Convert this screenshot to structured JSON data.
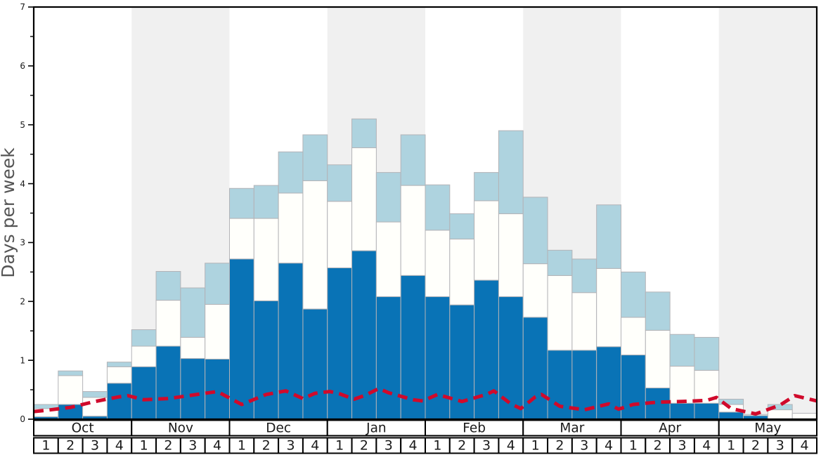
{
  "chart_data": {
    "type": "bar",
    "title": "",
    "xlabel": "",
    "ylabel": "Days per week",
    "ylim": [
      0,
      7
    ],
    "y_major_ticks": [
      "0",
      "1",
      "2",
      "3",
      "4",
      "5",
      "6",
      "7"
    ],
    "y_minor_step": 0.5,
    "grid": false,
    "legend": "none",
    "months": [
      {
        "label": "Oct",
        "shaded": false,
        "weeks": [
          "1",
          "2",
          "3",
          "4"
        ]
      },
      {
        "label": "Nov",
        "shaded": true,
        "weeks": [
          "1",
          "2",
          "3",
          "4"
        ]
      },
      {
        "label": "Dec",
        "shaded": false,
        "weeks": [
          "1",
          "2",
          "3",
          "4"
        ]
      },
      {
        "label": "Jan",
        "shaded": true,
        "weeks": [
          "1",
          "2",
          "3",
          "4"
        ]
      },
      {
        "label": "Feb",
        "shaded": false,
        "weeks": [
          "1",
          "2",
          "3",
          "4"
        ]
      },
      {
        "label": "Mar",
        "shaded": true,
        "weeks": [
          "1",
          "2",
          "3",
          "4"
        ]
      },
      {
        "label": "Apr",
        "shaded": false,
        "weeks": [
          "1",
          "2",
          "3",
          "4"
        ]
      },
      {
        "label": "May",
        "shaded": true,
        "weeks": [
          "1",
          "2",
          "3",
          "4"
        ]
      }
    ],
    "series": [
      {
        "name": "dark_blue_bottom_segment_top",
        "values": [
          0.04,
          0.25,
          0.05,
          0.61,
          0.89,
          1.24,
          1.03,
          1.02,
          2.72,
          2.01,
          2.65,
          1.87,
          2.57,
          2.86,
          2.08,
          2.44,
          2.08,
          1.94,
          2.36,
          2.08,
          1.73,
          1.17,
          1.17,
          1.23,
          1.09,
          0.53,
          0.27,
          0.27,
          0.12,
          0.06,
          0.0,
          0.0
        ]
      },
      {
        "name": "white_middle_segment_top",
        "values": [
          0.18,
          0.74,
          0.37,
          0.89,
          1.24,
          2.02,
          1.39,
          1.95,
          3.41,
          3.41,
          3.84,
          4.05,
          3.7,
          4.61,
          3.35,
          3.97,
          3.21,
          3.06,
          3.71,
          3.49,
          2.64,
          2.44,
          2.15,
          2.56,
          1.73,
          1.51,
          0.9,
          0.83,
          0.25,
          0.08,
          0.16,
          0.1
        ]
      },
      {
        "name": "light_blue_top_segment_top",
        "values": [
          0.25,
          0.82,
          0.47,
          0.97,
          1.52,
          2.51,
          2.23,
          2.65,
          3.92,
          3.97,
          4.54,
          4.83,
          4.32,
          5.1,
          4.19,
          4.83,
          3.98,
          3.49,
          4.19,
          4.9,
          3.77,
          2.87,
          2.72,
          3.64,
          2.5,
          2.16,
          1.44,
          1.39,
          0.34,
          0.08,
          0.25,
          0.1
        ]
      }
    ],
    "trend_line": {
      "name": "red_dashed_line",
      "points_week_pos_value": [
        [
          0,
          0.13
        ],
        [
          0.5,
          0.15
        ],
        [
          1.5,
          0.2
        ],
        [
          2.5,
          0.3
        ],
        [
          3.5,
          0.38
        ],
        [
          3.85,
          0.4
        ],
        [
          4.5,
          0.33
        ],
        [
          5.5,
          0.35
        ],
        [
          6.5,
          0.41
        ],
        [
          7.5,
          0.47
        ],
        [
          8.5,
          0.25
        ],
        [
          9.5,
          0.42
        ],
        [
          10.3,
          0.48
        ],
        [
          11.0,
          0.35
        ],
        [
          11.5,
          0.44
        ],
        [
          12.1,
          0.47
        ],
        [
          12.5,
          0.43
        ],
        [
          13.1,
          0.34
        ],
        [
          13.5,
          0.4
        ],
        [
          14.1,
          0.52
        ],
        [
          14.5,
          0.45
        ],
        [
          15.5,
          0.33
        ],
        [
          15.9,
          0.31
        ],
        [
          16.5,
          0.42
        ],
        [
          17.5,
          0.3
        ],
        [
          18.5,
          0.42
        ],
        [
          18.8,
          0.48
        ],
        [
          19.5,
          0.26
        ],
        [
          19.9,
          0.18
        ],
        [
          20.5,
          0.38
        ],
        [
          20.75,
          0.42
        ],
        [
          21.5,
          0.22
        ],
        [
          22.5,
          0.16
        ],
        [
          23.5,
          0.26
        ],
        [
          23.9,
          0.17
        ],
        [
          24.5,
          0.25
        ],
        [
          25.5,
          0.29
        ],
        [
          26.5,
          0.3
        ],
        [
          27.5,
          0.32
        ],
        [
          27.9,
          0.37
        ],
        [
          28.5,
          0.18
        ],
        [
          29.5,
          0.09
        ],
        [
          30.5,
          0.24
        ],
        [
          31.1,
          0.4
        ],
        [
          31.5,
          0.36
        ],
        [
          32,
          0.31
        ]
      ]
    },
    "colors": {
      "dark_blue": "#0973b6",
      "light_blue": "#aed3df",
      "bar_white": "#fffffb",
      "bar_border": "#b3b3b7",
      "band_gray": "#f0f0f0",
      "trend_red": "#d00a2b",
      "axis_black": "#000000",
      "tick_text": "#1a1a1a",
      "ylabel_text": "#555555"
    }
  }
}
